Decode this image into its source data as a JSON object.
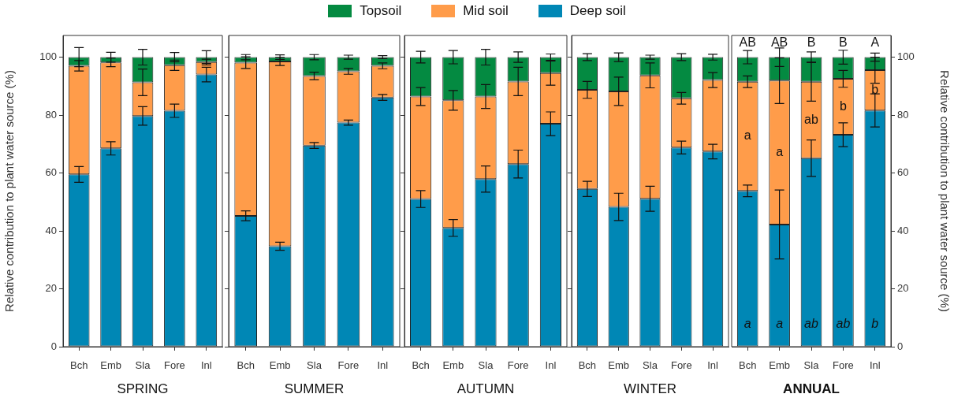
{
  "chart_data": [
    {
      "type": "bar",
      "stacked": true,
      "xlabel": "SPRING",
      "ylabel": "Relative contribution to plant water source (%)",
      "categories": [
        "Bch",
        "Emb",
        "Sla",
        "Fore",
        "Inl"
      ],
      "ylim": [
        0,
        107.5
      ],
      "yticks": [
        0,
        20,
        40,
        60,
        80,
        100
      ],
      "legend": "top",
      "series": [
        {
          "name": "Deep soil",
          "color": "#0087b5",
          "values": [
            59.5,
            68.5,
            79.7,
            81.5,
            94
          ],
          "errors": [
            2.7,
            2.3,
            3.2,
            2.3,
            2.5
          ]
        },
        {
          "name": "Mid soil",
          "color": "#ff9c4a",
          "values": [
            37.5,
            29.7,
            11.6,
            15.7,
            4.3
          ],
          "errors": [
            1.8,
            1.5,
            4.6,
            1.8,
            1
          ]
        },
        {
          "name": "Topsoil",
          "color": "#048a41",
          "values": [
            3,
            1.8,
            8.7,
            2.8,
            1.7
          ],
          "errors": [
            3.3,
            1.7,
            2.7,
            1.6,
            2.2
          ]
        }
      ]
    },
    {
      "type": "bar",
      "stacked": true,
      "xlabel": "SUMMER",
      "categories": [
        "Bch",
        "Emb",
        "Sla",
        "Fore",
        "Inl"
      ],
      "ylim": [
        0,
        107.5
      ],
      "yticks": [
        0,
        20,
        40,
        60,
        80,
        100
      ],
      "tick_labels": "x",
      "series": [
        {
          "color": "#0087b5",
          "values": [
            45.2,
            34.7,
            69.5,
            77.4,
            86.1
          ],
          "errors": [
            1.7,
            1.4,
            1,
            0.9,
            1
          ]
        },
        {
          "color": "#ff9c4a",
          "values": [
            52.9,
            63.8,
            24,
            17.7,
            10.9
          ],
          "errors": [
            2,
            1.4,
            1.3,
            1,
            1
          ]
        },
        {
          "color": "#048a41",
          "values": [
            1.9,
            1.5,
            6.5,
            4.9,
            3
          ],
          "errors": [
            0.9,
            0.8,
            0.9,
            0.7,
            0.5
          ]
        }
      ]
    },
    {
      "type": "bar",
      "stacked": true,
      "xlabel": "AUTUMN",
      "categories": [
        "Bch",
        "Emb",
        "Sla",
        "Fore",
        "Inl"
      ],
      "ylim": [
        0,
        107.5
      ],
      "yticks": [
        0,
        20,
        40,
        60,
        80,
        100
      ],
      "tick_labels": "x",
      "series": [
        {
          "color": "#0087b5",
          "values": [
            51,
            41,
            57.9,
            63.1,
            77
          ],
          "errors": [
            2.9,
            2.9,
            4.5,
            4.8,
            4.1
          ]
        },
        {
          "color": "#ff9c4a",
          "values": [
            35.4,
            44.1,
            28.5,
            28.5,
            17.5
          ],
          "errors": [
            3.1,
            3.4,
            4.1,
            4.9,
            4.2
          ]
        },
        {
          "color": "#048a41",
          "values": [
            13.6,
            14.9,
            13.6,
            8.4,
            5.5
          ],
          "errors": [
            2,
            2.3,
            2.7,
            1.8,
            1.1
          ]
        }
      ]
    },
    {
      "type": "bar",
      "stacked": true,
      "xlabel": "WINTER",
      "categories": [
        "Bch",
        "Emb",
        "Sla",
        "Fore",
        "Inl"
      ],
      "ylim": [
        0,
        107.5
      ],
      "yticks": [
        0,
        20,
        40,
        60,
        80,
        100
      ],
      "tick_labels": "x",
      "series": [
        {
          "color": "#0087b5",
          "values": [
            54.5,
            48.3,
            51.1,
            68.8,
            67.4
          ],
          "errors": [
            2.6,
            4.7,
            4.3,
            2.2,
            2.5
          ]
        },
        {
          "color": "#ff9c4a",
          "values": [
            34.2,
            39.9,
            42.6,
            17,
            24.7
          ],
          "errors": [
            2.9,
            4.9,
            4.3,
            2,
            2.6
          ]
        },
        {
          "color": "#048a41",
          "values": [
            11.3,
            11.8,
            6.3,
            14.2,
            7.9
          ],
          "errors": [
            1.2,
            1.5,
            0.7,
            1.2,
            1
          ]
        }
      ]
    },
    {
      "type": "bar",
      "stacked": true,
      "xlabel": "ANNUAL",
      "y2label": "Relative contribution to plant water source (%)",
      "categories": [
        "Bch",
        "Emb",
        "Sla",
        "Fore",
        "Inl"
      ],
      "y2lim": [
        0,
        107.5
      ],
      "y2ticks": [
        0,
        20,
        40,
        60,
        80,
        100
      ],
      "series": [
        {
          "color": "#0087b5",
          "values": [
            53.8,
            42.2,
            65.1,
            73.2,
            81.6
          ],
          "errors": [
            2,
            11.9,
            6.3,
            4.1,
            5.7
          ],
          "axis": "y2"
        },
        {
          "color": "#ff9c4a",
          "values": [
            37.7,
            49.7,
            26.4,
            19.3,
            13.9
          ],
          "errors": [
            2,
            7.9,
            6.7,
            2.9,
            4.5
          ],
          "axis": "y2"
        },
        {
          "color": "#048a41",
          "values": [
            8.5,
            8.1,
            8.5,
            7.5,
            4.5
          ],
          "errors": [
            2.3,
            3.2,
            1.8,
            2.4,
            1.4
          ],
          "axis": "y2"
        }
      ],
      "annotations": [
        "AB",
        "AB",
        "B",
        "B",
        "A",
        "a",
        "a",
        "ab",
        "b",
        "b",
        "a",
        "a",
        "ab",
        "ab",
        "b"
      ]
    }
  ]
}
